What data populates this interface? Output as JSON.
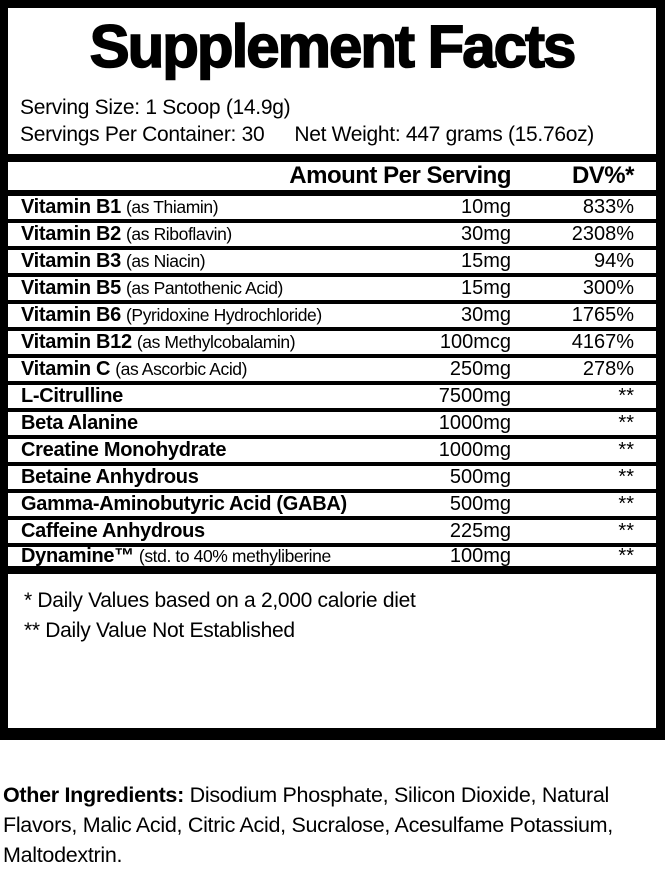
{
  "colors": {
    "text": "#000000",
    "background": "#ffffff",
    "border": "#000000"
  },
  "label": {
    "title": "Supplement Facts",
    "serving_size": "Serving Size: 1 Scoop (14.9g)",
    "servings_per_container": "Servings Per Container: 30",
    "net_weight": "Net Weight: 447 grams (15.76oz)",
    "header": {
      "amount": "Amount Per Serving",
      "dv": "DV%*"
    },
    "rows": [
      {
        "name": "Vitamin B1",
        "detail": "(as Thiamin)",
        "amount": "10mg",
        "dv": "833%"
      },
      {
        "name": "Vitamin B2",
        "detail": "(as Riboflavin)",
        "amount": "30mg",
        "dv": "2308%"
      },
      {
        "name": "Vitamin B3",
        "detail": "(as Niacin)",
        "amount": "15mg",
        "dv": "94%"
      },
      {
        "name": "Vitamin B5",
        "detail": "(as Pantothenic Acid)",
        "amount": "15mg",
        "dv": "300%"
      },
      {
        "name": "Vitamin B6",
        "detail": "(Pyridoxine Hydrochloride)",
        "amount": "30mg",
        "dv": "1765%"
      },
      {
        "name": "Vitamin B12",
        "detail": "(as Methylcobalamin)",
        "amount": "100mcg",
        "dv": "4167%"
      },
      {
        "name": "Vitamin C",
        "detail": "(as Ascorbic Acid)",
        "amount": "250mg",
        "dv": "278%"
      },
      {
        "name": "L-Citrulline",
        "detail": "",
        "amount": "7500mg",
        "dv": "**"
      },
      {
        "name": "Beta Alanine",
        "detail": "",
        "amount": "1000mg",
        "dv": "**"
      },
      {
        "name": "Creatine Monohydrate",
        "detail": "",
        "amount": "1000mg",
        "dv": "**"
      },
      {
        "name": "Betaine Anhydrous",
        "detail": "",
        "amount": "500mg",
        "dv": "**"
      },
      {
        "name": "Gamma-Aminobutyric Acid (GABA)",
        "detail": "",
        "amount": "500mg",
        "dv": "**"
      },
      {
        "name": "Caffeine Anhydrous",
        "detail": "",
        "amount": "225mg",
        "dv": "**"
      },
      {
        "name": "Dynamine™",
        "detail": "(std. to 40% methyliberine",
        "amount": "100mg",
        "dv": "**"
      }
    ],
    "footnotes": [
      "* Daily Values based on a 2,000 calorie diet",
      "** Daily Value Not Established"
    ]
  },
  "other_ingredients": {
    "label": "Other Ingredients:",
    "text": " Disodium Phosphate, Silicon Dioxide, Natural Flavors, Malic Acid, Citric Acid, Sucralose, Acesulfame Potassium, Maltodextrin."
  }
}
